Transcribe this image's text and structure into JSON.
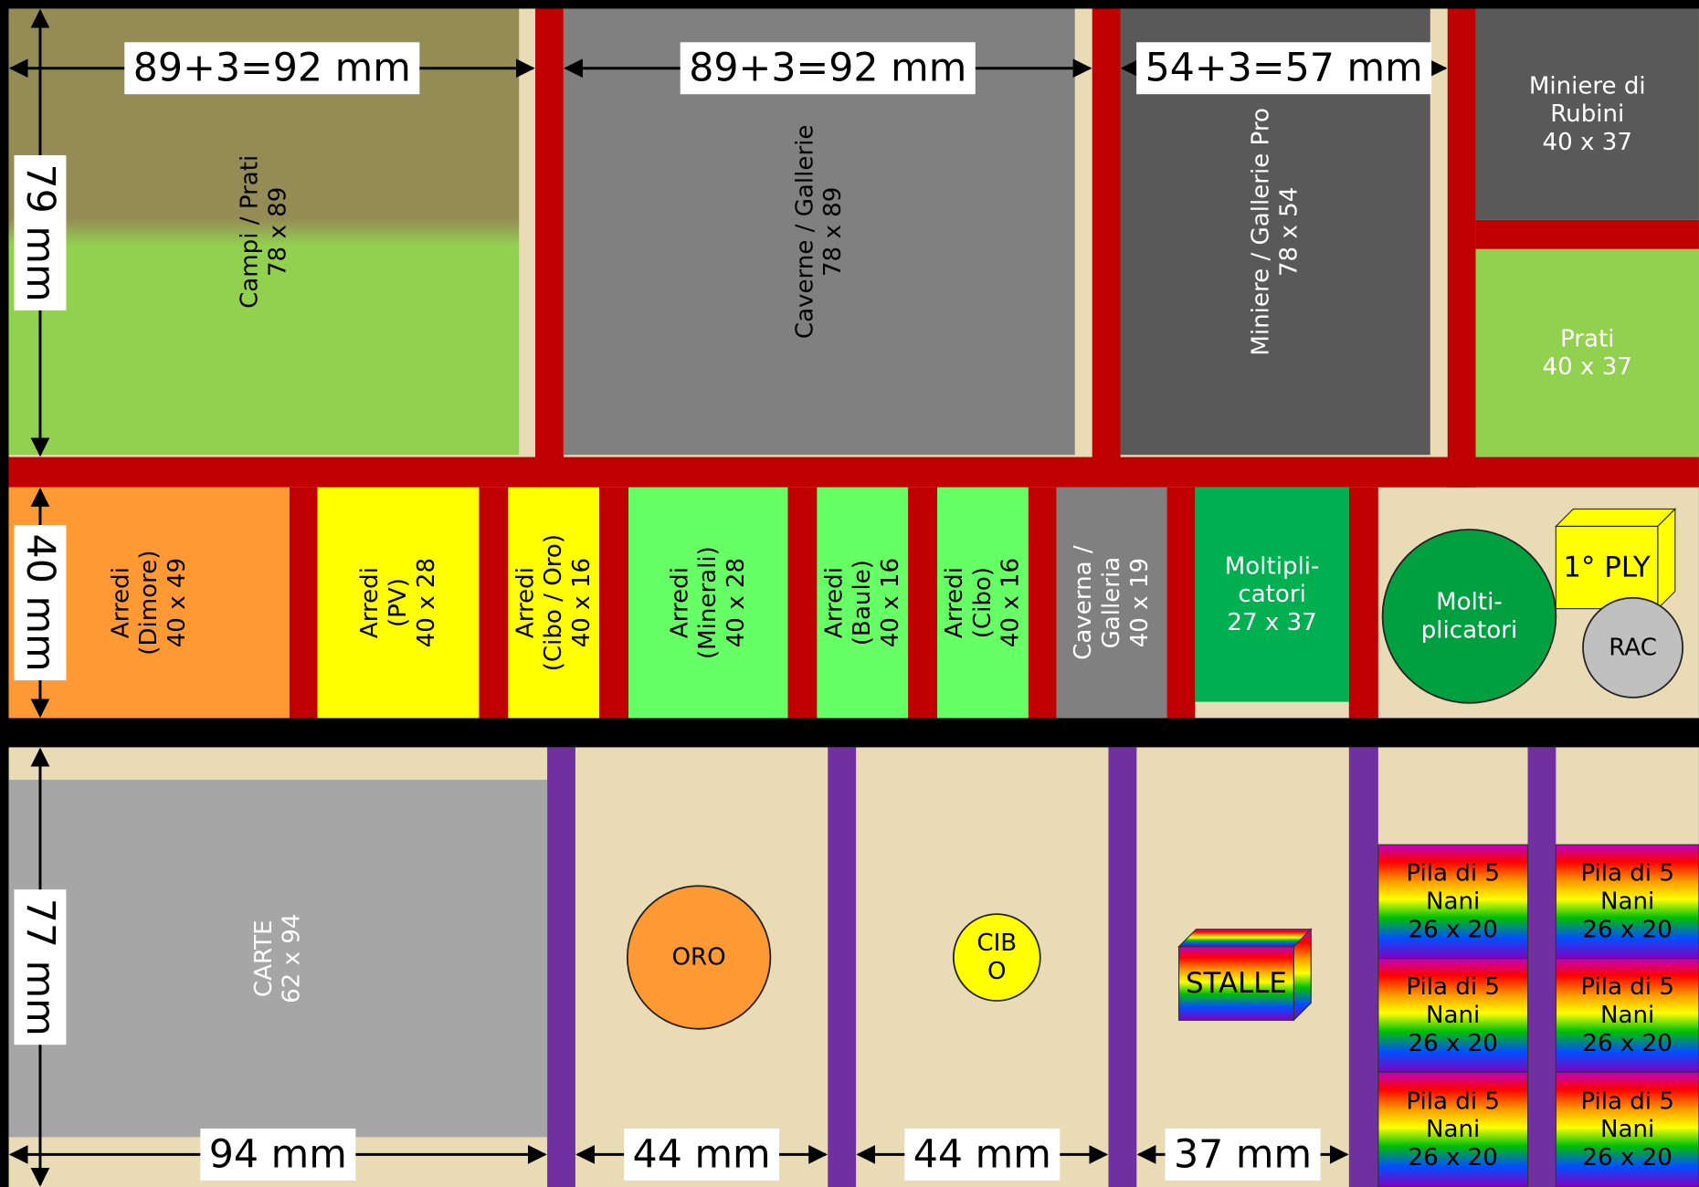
{
  "dimensions": {
    "top": [
      "89+3=92 mm",
      "89+3=92 mm",
      "54+3=57 mm"
    ],
    "left": [
      "79 mm",
      "40 mm",
      "77 mm"
    ],
    "bottom": [
      "94 mm",
      "44 mm",
      "44 mm",
      "37  mm"
    ]
  },
  "compartments": [
    {
      "lines": [
        "Campi / Prati",
        "78 x 89"
      ]
    },
    {
      "lines": [
        "Caverne / Gallerie",
        "78 x 89"
      ]
    },
    {
      "lines": [
        "Miniere / Gallerie Pro",
        "78 x 54"
      ]
    },
    {
      "lines": [
        "Miniere di",
        "Rubini",
        "40 x 37"
      ]
    },
    {
      "lines": [
        "Prati",
        "40 x 37"
      ]
    },
    {
      "lines": [
        "Arredi",
        "(Dimore)",
        "40 x 49"
      ]
    },
    {
      "lines": [
        "Arredi",
        "(PV)",
        "40 x 28"
      ]
    },
    {
      "lines": [
        "Arredi",
        "(Cibo / Oro)",
        "40 x 16"
      ]
    },
    {
      "lines": [
        "Arredi",
        "(Minerali)",
        "40 x 28"
      ]
    },
    {
      "lines": [
        "Arredi",
        "(Baule)",
        "40 x 16"
      ]
    },
    {
      "lines": [
        "Arredi",
        "(Cibo)",
        "40 x 16"
      ]
    },
    {
      "lines": [
        "Caverna /",
        "Galleria",
        "40 x 19"
      ]
    },
    {
      "lines": [
        "Moltipli-",
        "catori",
        "27 x 37"
      ]
    },
    {
      "lines": [
        "Molti-",
        "plicatori"
      ]
    },
    {
      "lines": [
        "1° PLY"
      ]
    },
    {
      "lines": [
        "RAC"
      ]
    },
    {
      "lines": [
        "CARTE",
        "62 x 94"
      ]
    },
    {
      "lines": [
        "ORO"
      ]
    },
    {
      "lines": [
        "CIB",
        "O"
      ]
    },
    {
      "lines": [
        "STALLE"
      ]
    },
    {
      "lines": [
        "Pila di 5",
        "Nani",
        "26 x 20"
      ]
    },
    {
      "lines": [
        "Pila di 5",
        "Nani",
        "26 x 20"
      ]
    },
    {
      "lines": [
        "Pila di 5",
        "Nani",
        "26 x 20"
      ]
    },
    {
      "lines": [
        "Pila di 5",
        "Nani",
        "26 x 20"
      ]
    },
    {
      "lines": [
        "Pila di 5",
        "Nani",
        "26 x 20"
      ]
    },
    {
      "lines": [
        "Pila di 5",
        "Nani",
        "26 x 20"
      ]
    }
  ]
}
